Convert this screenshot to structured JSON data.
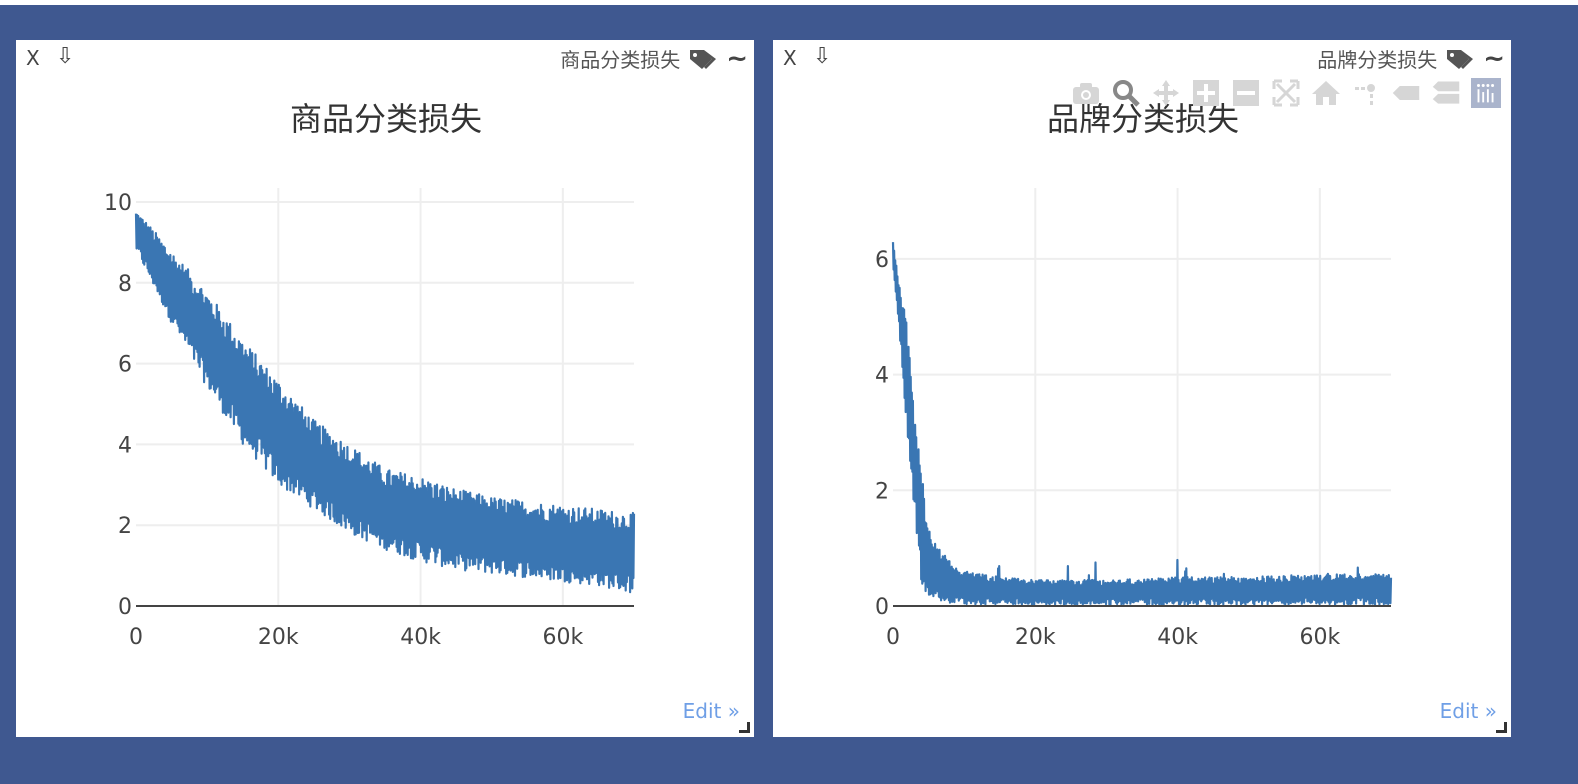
{
  "panels": [
    {
      "window_title": "商品分类损失",
      "close_label": "X",
      "download_label": "⇩",
      "edit_label": "Edit »",
      "show_modebar": false
    },
    {
      "window_title": "品牌分类损失",
      "close_label": "X",
      "download_label": "⇩",
      "edit_label": "Edit »",
      "show_modebar": true
    }
  ],
  "modebar_icons": [
    "camera-icon",
    "zoom-icon",
    "pan-icon",
    "zoom-in-icon",
    "zoom-out-icon",
    "autoscale-icon",
    "home-icon",
    "spike-lines-icon",
    "hover-closest-icon",
    "hover-compare-icon",
    "plotly-logo-icon"
  ],
  "colors": {
    "line": "#3a76b3",
    "background": "#3f5890",
    "edit_link": "#6f9fe6",
    "grid": "#eeeeee"
  },
  "chart_data": [
    {
      "type": "line",
      "title": "商品分类损失",
      "xlabel": "",
      "ylabel": "",
      "xlim": [
        0,
        70000
      ],
      "ylim": [
        0,
        10
      ],
      "x_ticks": [
        0,
        20000,
        40000,
        60000
      ],
      "x_tick_labels": [
        "0",
        "20k",
        "40k",
        "60k"
      ],
      "y_ticks": [
        0,
        2,
        4,
        6,
        8,
        10
      ],
      "y_tick_labels": [
        "0",
        "2",
        "4",
        "6",
        "8",
        "10"
      ],
      "grid": true,
      "series": [
        {
          "x": [
            0,
            5000,
            10000,
            15000,
            20000,
            25000,
            30000,
            35000,
            40000,
            45000,
            50000,
            55000,
            60000,
            65000,
            70000
          ],
          "high": [
            9.8,
            8.8,
            7.8,
            6.6,
            5.6,
            4.6,
            4.0,
            3.4,
            3.2,
            2.9,
            2.7,
            2.6,
            2.5,
            2.4,
            2.3
          ],
          "low": [
            8.8,
            7.0,
            5.4,
            4.0,
            3.0,
            2.4,
            1.8,
            1.4,
            1.1,
            0.9,
            0.8,
            0.7,
            0.6,
            0.5,
            0.3
          ]
        }
      ]
    },
    {
      "type": "line",
      "title": "品牌分类损失",
      "xlabel": "",
      "ylabel": "",
      "xlim": [
        0,
        70000
      ],
      "ylim": [
        0,
        6.5
      ],
      "x_ticks": [
        0,
        20000,
        40000,
        60000
      ],
      "x_tick_labels": [
        "0",
        "20k",
        "40k",
        "60k"
      ],
      "y_ticks": [
        0,
        2,
        4,
        6
      ],
      "y_tick_labels": [
        "0",
        "2",
        "4",
        "6"
      ],
      "grid": true,
      "series": [
        {
          "x": [
            0,
            1000,
            2000,
            3000,
            4000,
            5000,
            7000,
            10000,
            15000,
            20000,
            30000,
            40000,
            50000,
            60000,
            70000
          ],
          "high": [
            6.3,
            5.6,
            4.8,
            3.4,
            2.3,
            1.4,
            0.9,
            0.6,
            0.5,
            0.45,
            0.45,
            0.5,
            0.5,
            0.55,
            0.55
          ],
          "low": [
            5.8,
            4.6,
            3.0,
            1.6,
            0.4,
            0.1,
            0.05,
            0.02,
            0.02,
            0.02,
            0.02,
            0.02,
            0.02,
            0.02,
            0.02
          ]
        }
      ]
    }
  ]
}
